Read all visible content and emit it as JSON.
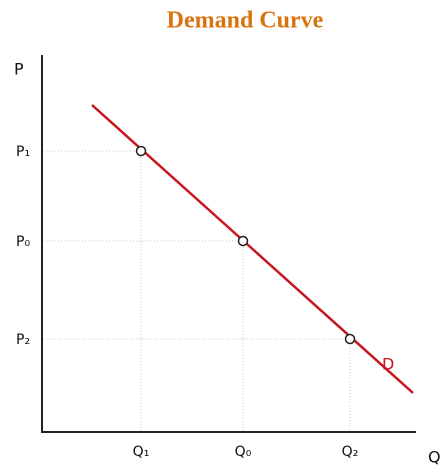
{
  "title": "Demand Curve",
  "axes": {
    "y_label": "P",
    "x_label": "Q"
  },
  "price_levels": [
    "P₁",
    "P₀",
    "P₂"
  ],
  "quantity_levels": [
    "Q₁",
    "Q₀",
    "Q₂"
  ],
  "curve_label": "D"
}
